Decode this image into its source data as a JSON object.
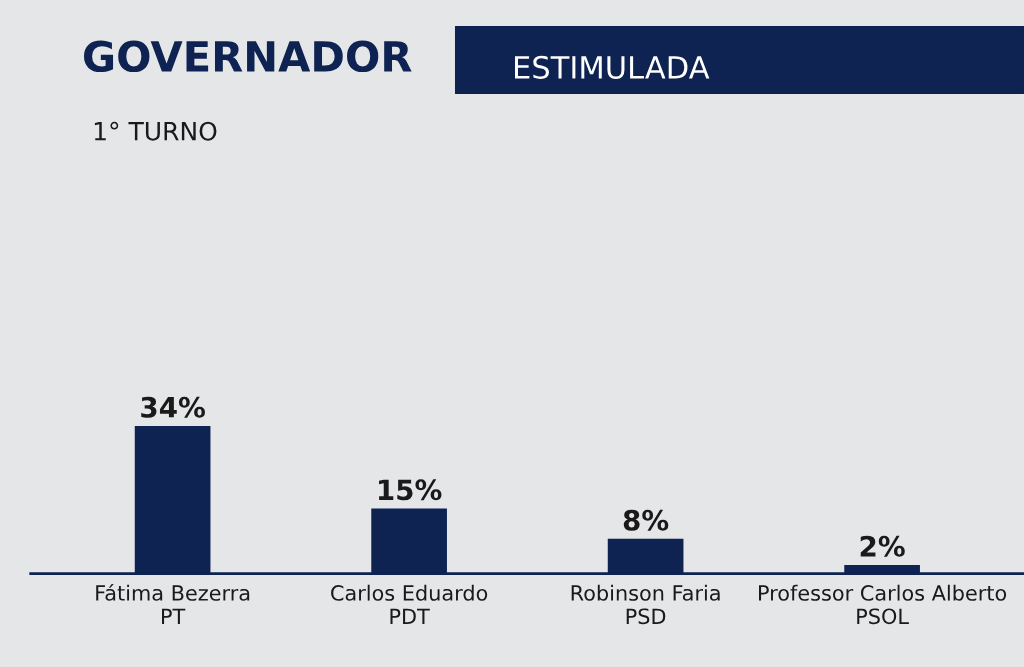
{
  "chart_data": {
    "type": "bar",
    "title": "GOVERNADOR",
    "subtitle": "ESTIMULADA",
    "annotations": [
      "1° TURNO"
    ],
    "categories": [
      "Fátima Bezerra\nPT",
      "Carlos Eduardo\nPDT",
      "Robinson Faria\nPSD",
      "Professor Carlos Alberto\nPSOL"
    ],
    "values": [
      34,
      15,
      8,
      2
    ],
    "value_labels": [
      "34%",
      "15%",
      "8%",
      "2%"
    ],
    "color": "#0f2352"
  }
}
